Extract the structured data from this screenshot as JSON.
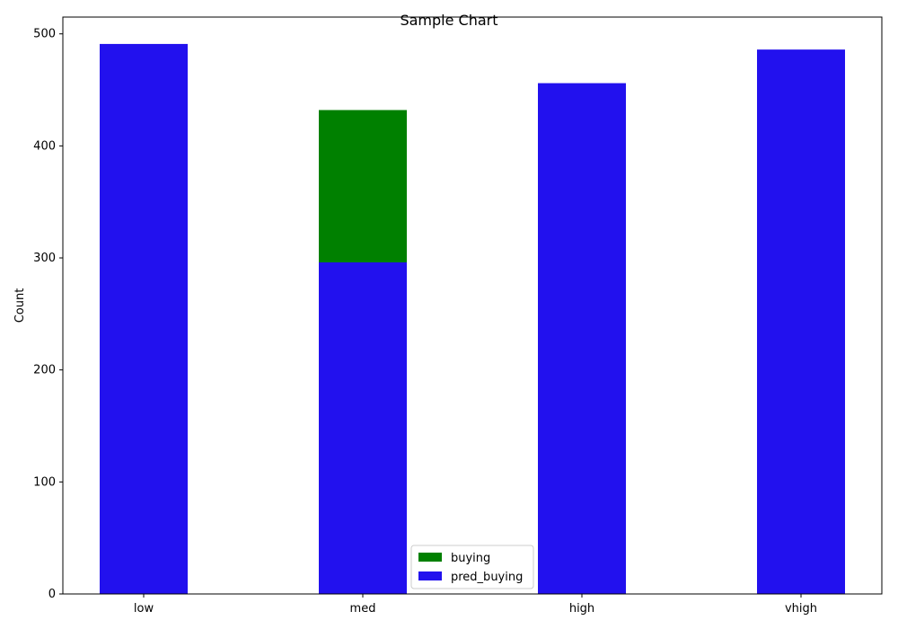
{
  "chart_data": {
    "type": "bar",
    "title": "Sample Chart",
    "xlabel": "",
    "ylabel": "Count",
    "categories": [
      "low",
      "med",
      "high",
      "vhigh"
    ],
    "series": [
      {
        "name": "buying",
        "values": [
          0,
          432,
          0,
          0
        ],
        "color": "#008000"
      },
      {
        "name": "pred_buying",
        "values": [
          491,
          296,
          456,
          486
        ],
        "color": "#2211ee"
      }
    ],
    "ylim": [
      0,
      515
    ],
    "yticks": [
      0,
      100,
      200,
      300,
      400,
      500
    ],
    "grid": false,
    "legend_position": "lower-center"
  }
}
